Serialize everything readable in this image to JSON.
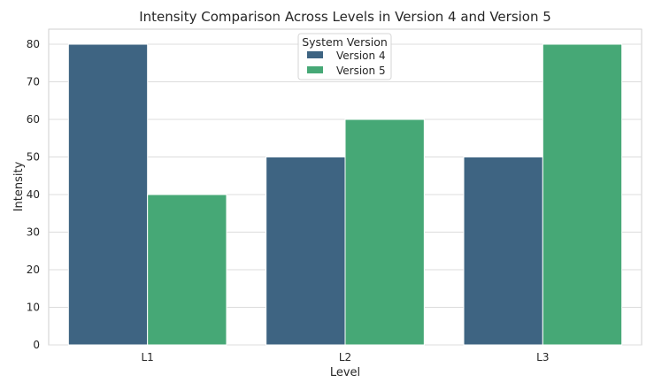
{
  "chart_data": {
    "type": "bar",
    "title": "Intensity Comparison Across Levels in Version 4 and Version 5",
    "xlabel": "Level",
    "ylabel": "Intensity",
    "categories": [
      "L1",
      "L2",
      "L3"
    ],
    "series": [
      {
        "name": "Version 4",
        "values": [
          80,
          50,
          50
        ],
        "color": "#3e6482"
      },
      {
        "name": "Version 5",
        "values": [
          40,
          60,
          80
        ],
        "color": "#46a876"
      }
    ],
    "ylim": [
      0,
      84
    ],
    "yticks": [
      0,
      10,
      20,
      30,
      40,
      50,
      60,
      70,
      80
    ],
    "grid": true,
    "legend": {
      "title": "System Version",
      "placement": "top-center"
    }
  }
}
